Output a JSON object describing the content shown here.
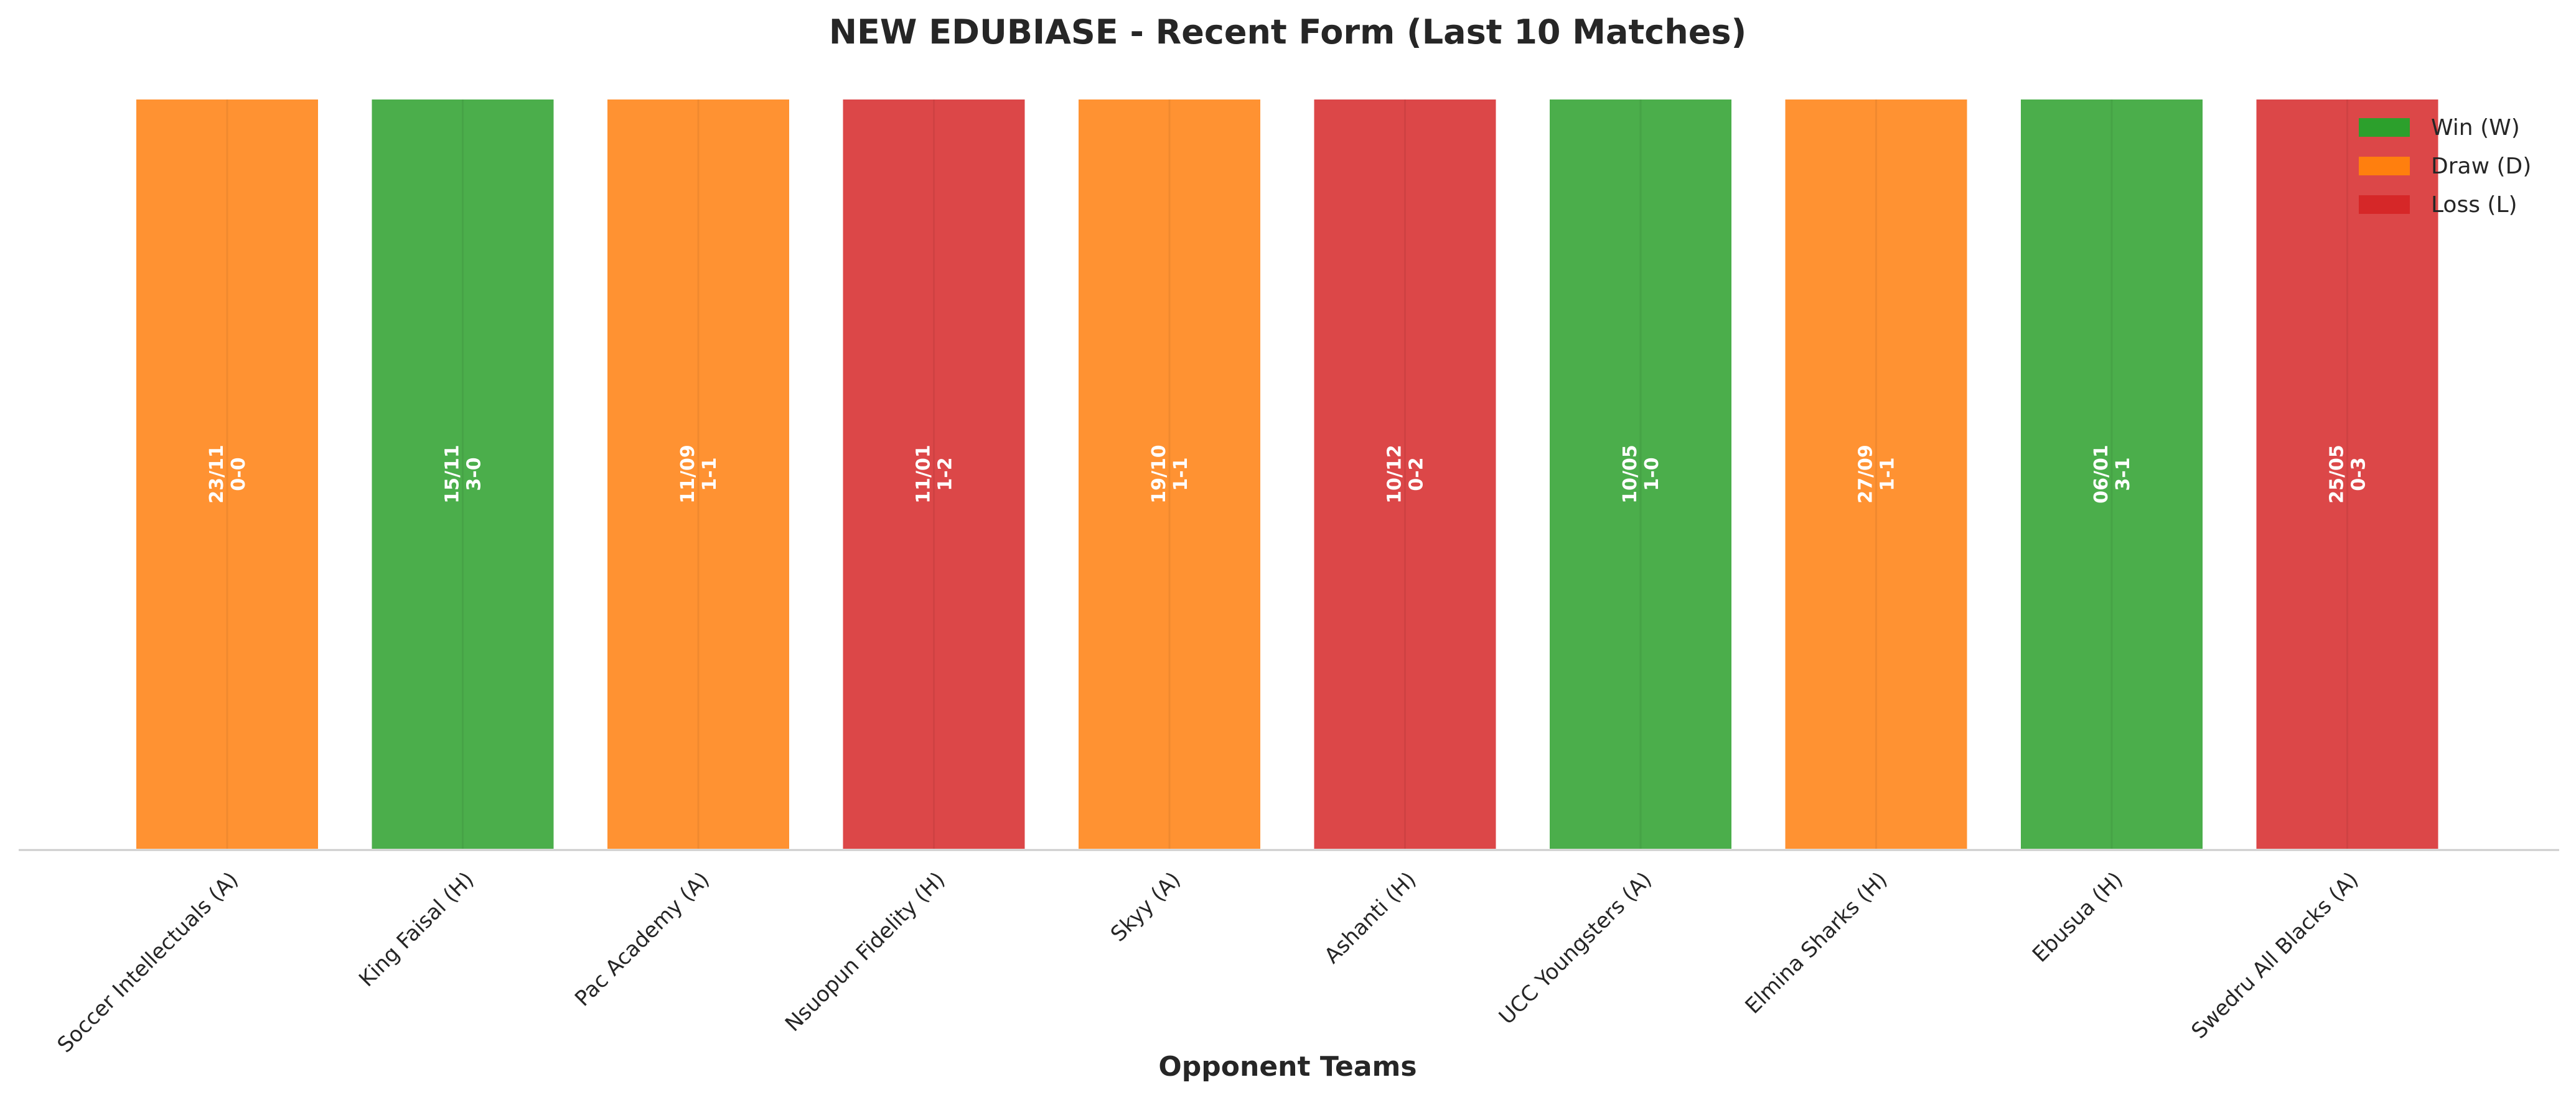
{
  "chart_data": {
    "type": "bar",
    "title": "NEW EDUBIASE - Recent Form (Last 10 Matches)",
    "xlabel": "Opponent Teams",
    "ylabel": "",
    "categories": [
      "Soccer Intellectuals (A)",
      "King Faisal (H)",
      "Pac Academy (A)",
      "Nsuopun Fidelity (H)",
      "Skyy (A)",
      "Ashanti (H)",
      "UCC Youngsters (A)",
      "Elmina Sharks (H)",
      "Ebusua (H)",
      "Swedru All Blacks (A)"
    ],
    "values": [
      1,
      1,
      1,
      1,
      1,
      1,
      1,
      1,
      1,
      1
    ],
    "results": [
      "D",
      "W",
      "D",
      "L",
      "D",
      "L",
      "W",
      "D",
      "W",
      "L"
    ],
    "dates": [
      "23/11",
      "15/11",
      "11/09",
      "11/01",
      "19/10",
      "10/12",
      "10/05",
      "27/09",
      "06/01",
      "25/05"
    ],
    "scores": [
      "0-0",
      "3-0",
      "1-1",
      "1-2",
      "1-1",
      "0-2",
      "1-0",
      "1-1",
      "3-1",
      "0-3"
    ],
    "ylim": [
      0,
      1
    ],
    "grid": false,
    "legend": {
      "placement": "top-right",
      "entries": [
        {
          "key": "W",
          "label": "Win (W)",
          "color": "#2ca02c"
        },
        {
          "key": "D",
          "label": "Draw (D)",
          "color": "#ff7f0e"
        },
        {
          "key": "L",
          "label": "Loss (L)",
          "color": "#d62728"
        }
      ]
    },
    "colors": {
      "W": "#2ca02c",
      "D": "#ff7f0e",
      "L": "#d62728"
    }
  }
}
